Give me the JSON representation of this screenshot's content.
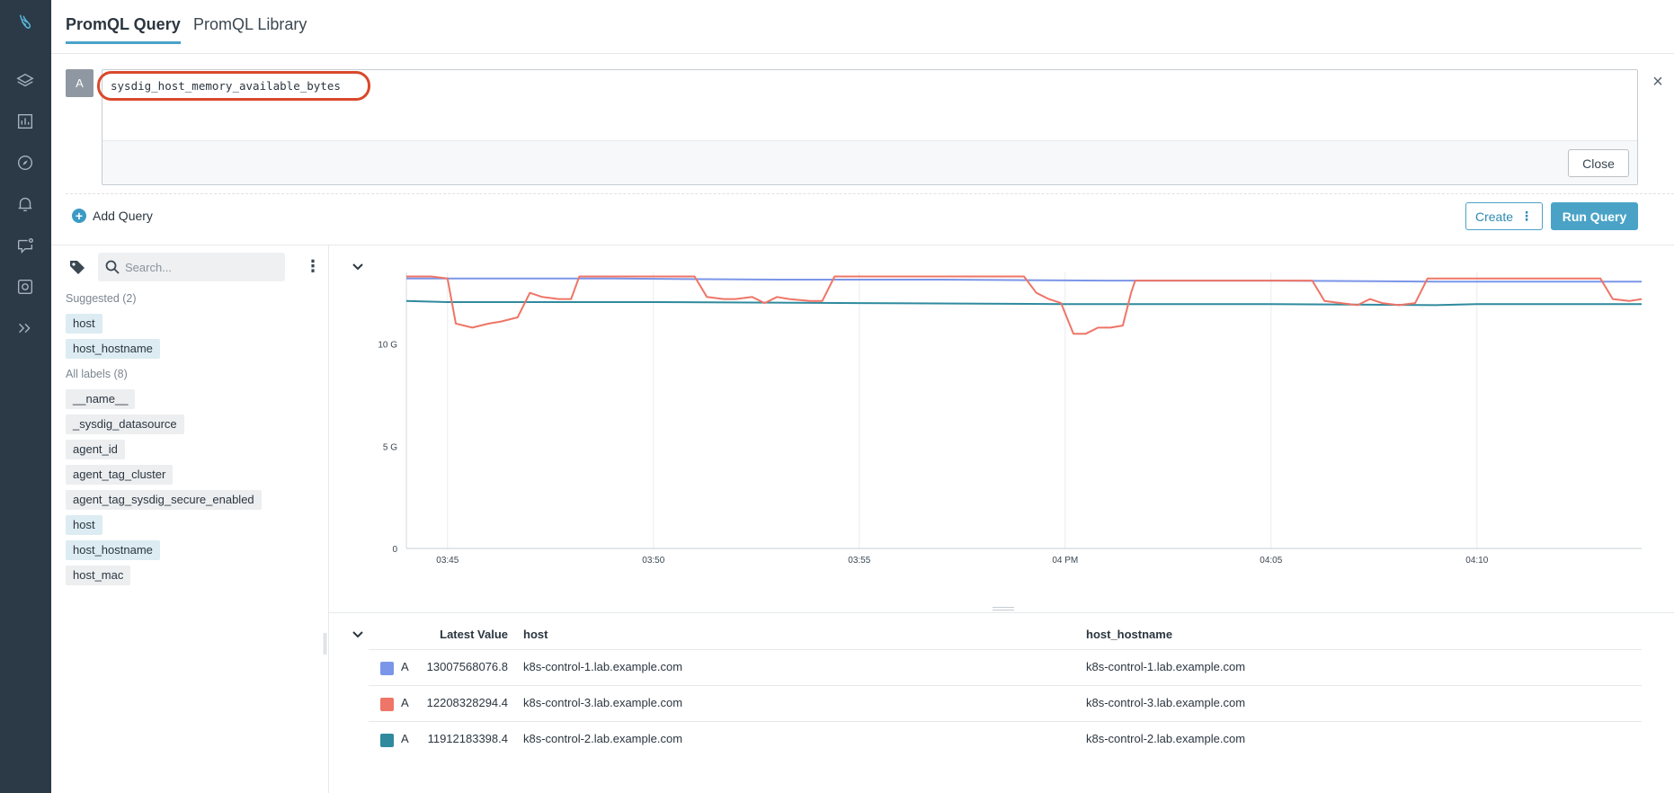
{
  "sidebar": {
    "icons": [
      "logo-icon",
      "layers-icon",
      "dashboard-chart-icon",
      "explore-compass-icon",
      "alerts-bell-icon",
      "events-chat-icon",
      "capture-icon",
      "expand-chevrons-icon"
    ]
  },
  "tabs": [
    {
      "label": "PromQL Query",
      "active": true
    },
    {
      "label": "PromQL Library",
      "active": false
    }
  ],
  "query": {
    "letter": "A",
    "text": "sysdig_host_memory_available_bytes",
    "close_label": "Close"
  },
  "actions": {
    "add_query": "Add Query",
    "create": "Create",
    "run_query": "Run Query"
  },
  "labels": {
    "search_placeholder": "Search...",
    "suggested_heading": "Suggested (2)",
    "suggested": [
      "host",
      "host_hostname"
    ],
    "all_heading": "All labels (8)",
    "all": [
      "__name__",
      "_sysdig_datasource",
      "agent_id",
      "agent_tag_cluster",
      "agent_tag_sysdig_secure_enabled",
      "host",
      "host_hostname",
      "host_mac"
    ]
  },
  "chart_data": {
    "type": "line",
    "y_ticks": [
      "10 G",
      "5 G",
      "0"
    ],
    "y_tick_values": [
      10,
      5,
      0
    ],
    "ylim": [
      0,
      13.5
    ],
    "x_ticks": [
      "03:45",
      "03:50",
      "03:55",
      "04 PM",
      "04:05",
      "04:10"
    ],
    "x_tick_minutes": [
      0,
      5,
      10,
      15,
      20,
      25
    ],
    "xlim": [
      -1,
      29
    ],
    "grid": true,
    "series": [
      {
        "color": "#7b95e8",
        "x": [
          -1,
          4,
          8,
          12,
          16,
          20,
          24,
          29
        ],
        "values": [
          13.2,
          13.2,
          13.15,
          13.15,
          13.1,
          13.1,
          13.05,
          13.05
        ]
      },
      {
        "color": "#2f8a9e",
        "x": [
          -1,
          0,
          5,
          10,
          15,
          20,
          24,
          25,
          29
        ],
        "values": [
          12.1,
          12.05,
          12.05,
          12.0,
          11.95,
          11.95,
          11.9,
          11.95,
          11.95
        ]
      },
      {
        "color": "#ee7567",
        "x": [
          -1,
          -0.4,
          0,
          0.2,
          0.6,
          1,
          1.3,
          1.7,
          2,
          2.3,
          2.7,
          3.0,
          3.2,
          6.0,
          6.3,
          6.7,
          7.0,
          7.4,
          7.7,
          8.0,
          8.3,
          8.8,
          9.1,
          9.4,
          14.0,
          14.3,
          14.6,
          14.9,
          15.2,
          15.5,
          15.8,
          16.1,
          16.4,
          16.6,
          16.7,
          18,
          21.0,
          21.3,
          21.7,
          22.1,
          22.4,
          22.7,
          23.1,
          23.5,
          23.8,
          24,
          28.0,
          28.3,
          28.7,
          29
        ],
        "values": [
          13.3,
          13.3,
          13.2,
          11.0,
          10.8,
          11.0,
          11.1,
          11.3,
          12.5,
          12.3,
          12.2,
          12.2,
          13.3,
          13.3,
          12.3,
          12.2,
          12.2,
          12.3,
          12.0,
          12.3,
          12.2,
          12.1,
          12.1,
          13.3,
          13.3,
          12.5,
          12.2,
          12.0,
          10.5,
          10.5,
          10.8,
          10.8,
          10.9,
          12.5,
          13.1,
          13.1,
          13.1,
          12.1,
          12.0,
          11.9,
          12.2,
          12.0,
          11.9,
          12.0,
          13.2,
          13.2,
          13.2,
          12.2,
          12.1,
          12.2
        ]
      }
    ]
  },
  "table": {
    "headers": {
      "value": "Latest Value",
      "host": "host",
      "hostname": "host_hostname"
    },
    "rows": [
      {
        "color": "#7b95e8",
        "query": "A",
        "value": "13007568076.8",
        "host": "k8s-control-1.lab.example.com",
        "hostname": "k8s-control-1.lab.example.com"
      },
      {
        "color": "#ee7567",
        "query": "A",
        "value": "12208328294.4",
        "host": "k8s-control-3.lab.example.com",
        "hostname": "k8s-control-3.lab.example.com"
      },
      {
        "color": "#2f8a9e",
        "query": "A",
        "value": "11912183398.4",
        "host": "k8s-control-2.lab.example.com",
        "hostname": "k8s-control-2.lab.example.com"
      }
    ]
  }
}
